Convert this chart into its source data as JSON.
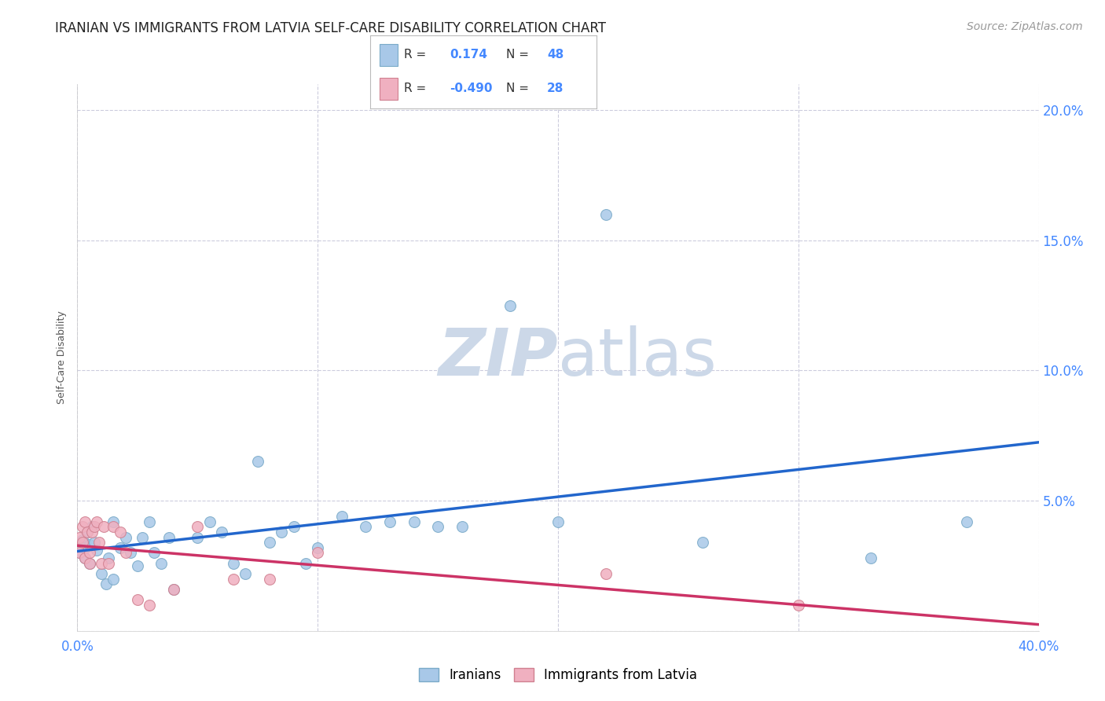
{
  "title": "IRANIAN VS IMMIGRANTS FROM LATVIA SELF-CARE DISABILITY CORRELATION CHART",
  "source": "Source: ZipAtlas.com",
  "ylabel": "Self-Care Disability",
  "xlim": [
    0.0,
    0.4
  ],
  "ylim": [
    0.0,
    0.21
  ],
  "xticks": [
    0.0,
    0.1,
    0.2,
    0.3,
    0.4
  ],
  "yticks": [
    0.0,
    0.05,
    0.1,
    0.15,
    0.2
  ],
  "background_color": "#ffffff",
  "grid_color": "#ccccdd",
  "iranians_color": "#a8c8e8",
  "iranians_color_edge": "#7aaac8",
  "latvians_color": "#f0b0c0",
  "latvians_color_edge": "#d08090",
  "trendline_iranian_color": "#2266cc",
  "trendline_latvian_color": "#cc3366",
  "watermark_color": "#ccd8e8",
  "R_iranian": 0.174,
  "N_iranian": 48,
  "R_latvian": -0.49,
  "N_latvian": 28,
  "iranians_x": [
    0.001,
    0.002,
    0.003,
    0.003,
    0.004,
    0.005,
    0.005,
    0.006,
    0.007,
    0.008,
    0.01,
    0.012,
    0.013,
    0.015,
    0.015,
    0.018,
    0.02,
    0.022,
    0.025,
    0.027,
    0.03,
    0.032,
    0.035,
    0.038,
    0.04,
    0.05,
    0.055,
    0.06,
    0.065,
    0.07,
    0.075,
    0.08,
    0.085,
    0.09,
    0.095,
    0.1,
    0.11,
    0.12,
    0.13,
    0.14,
    0.15,
    0.16,
    0.18,
    0.2,
    0.22,
    0.26,
    0.33,
    0.37
  ],
  "iranians_y": [
    0.03,
    0.035,
    0.032,
    0.028,
    0.038,
    0.033,
    0.026,
    0.04,
    0.034,
    0.031,
    0.022,
    0.018,
    0.028,
    0.02,
    0.042,
    0.032,
    0.036,
    0.03,
    0.025,
    0.036,
    0.042,
    0.03,
    0.026,
    0.036,
    0.016,
    0.036,
    0.042,
    0.038,
    0.026,
    0.022,
    0.065,
    0.034,
    0.038,
    0.04,
    0.026,
    0.032,
    0.044,
    0.04,
    0.042,
    0.042,
    0.04,
    0.04,
    0.125,
    0.042,
    0.16,
    0.034,
    0.028,
    0.042
  ],
  "latvians_x": [
    0.001,
    0.001,
    0.002,
    0.002,
    0.003,
    0.003,
    0.004,
    0.005,
    0.005,
    0.006,
    0.007,
    0.008,
    0.009,
    0.01,
    0.011,
    0.013,
    0.015,
    0.018,
    0.02,
    0.025,
    0.03,
    0.04,
    0.05,
    0.065,
    0.08,
    0.1,
    0.22,
    0.3
  ],
  "latvians_y": [
    0.036,
    0.03,
    0.04,
    0.034,
    0.042,
    0.028,
    0.038,
    0.03,
    0.026,
    0.038,
    0.04,
    0.042,
    0.034,
    0.026,
    0.04,
    0.026,
    0.04,
    0.038,
    0.03,
    0.012,
    0.01,
    0.016,
    0.04,
    0.02,
    0.02,
    0.03,
    0.022,
    0.01
  ],
  "title_fontsize": 12,
  "axis_label_fontsize": 9,
  "tick_fontsize": 12,
  "source_fontsize": 10,
  "marker_size": 100
}
